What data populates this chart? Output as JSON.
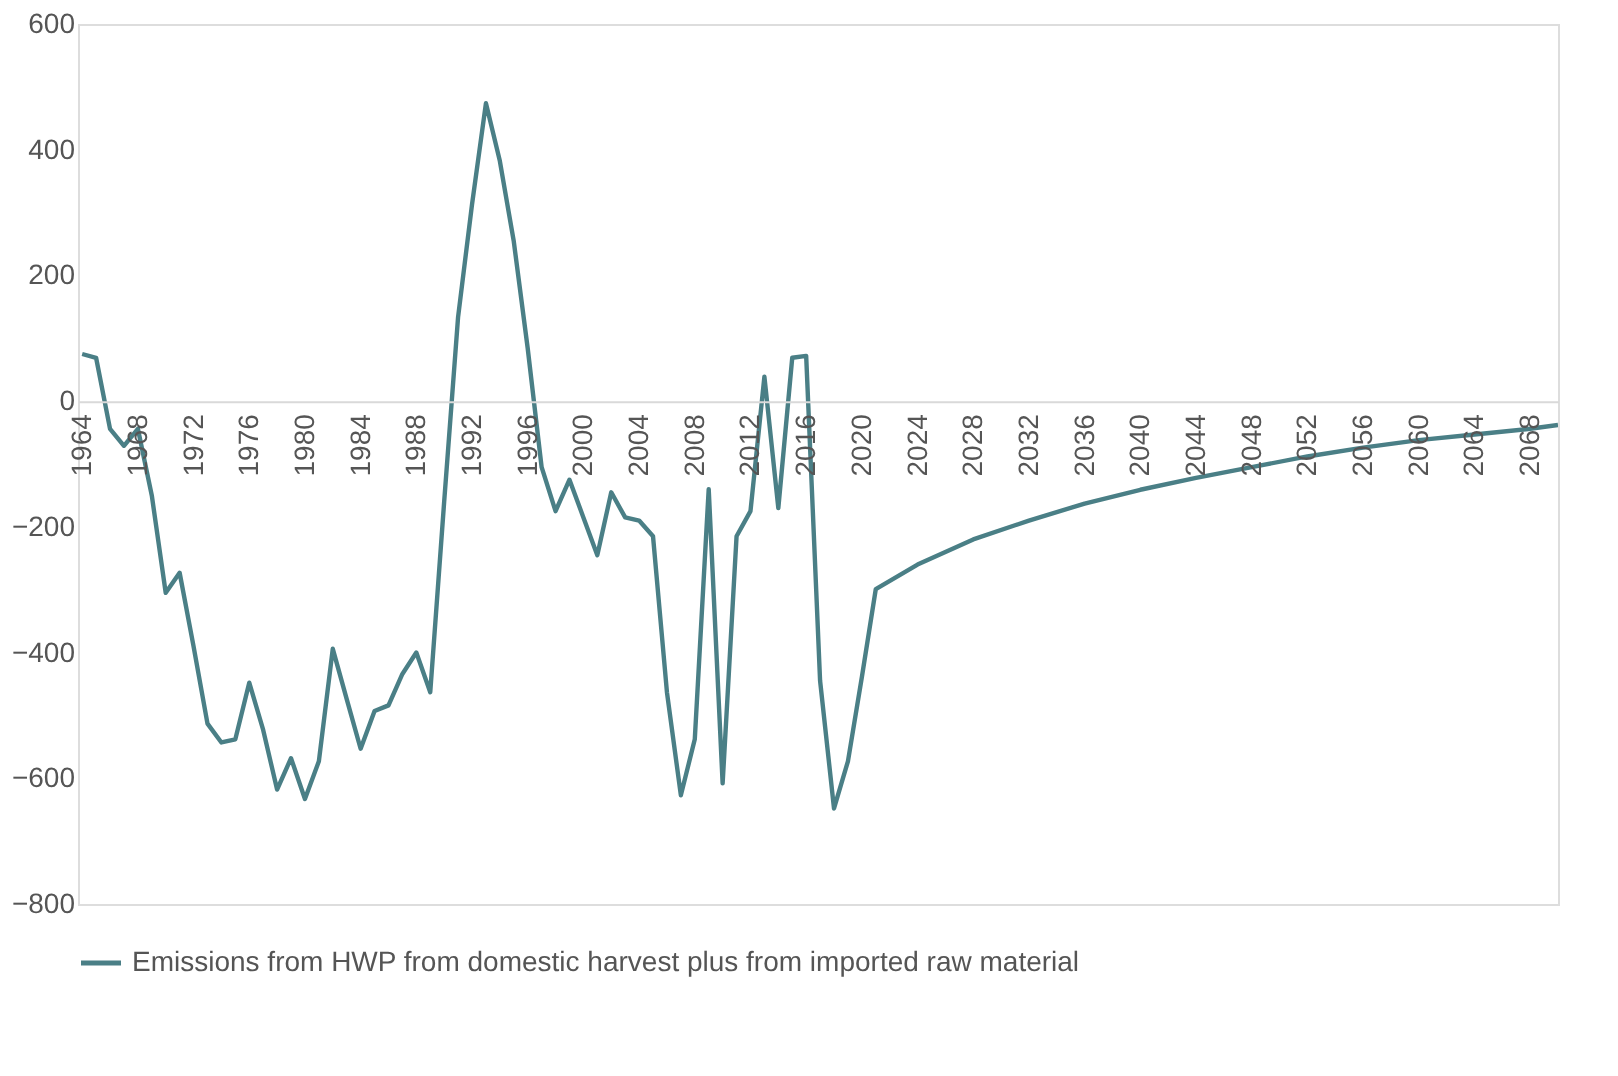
{
  "chart_data": {
    "type": "line",
    "x": [
      1964,
      1965,
      1966,
      1967,
      1968,
      1969,
      1970,
      1971,
      1972,
      1973,
      1974,
      1975,
      1976,
      1977,
      1978,
      1979,
      1980,
      1981,
      1982,
      1983,
      1984,
      1985,
      1986,
      1987,
      1988,
      1989,
      1990,
      1991,
      1992,
      1993,
      1994,
      1995,
      1996,
      1997,
      1998,
      1999,
      2000,
      2001,
      2002,
      2003,
      2004,
      2005,
      2006,
      2007,
      2008,
      2009,
      2010,
      2011,
      2012,
      2013,
      2014,
      2015,
      2016,
      2017,
      2018,
      2019,
      2020,
      2021,
      2024,
      2028,
      2032,
      2036,
      2040,
      2044,
      2048,
      2052,
      2056,
      2060,
      2064,
      2068,
      2070
    ],
    "series": [
      {
        "name": "Emissions from HWP from domestic harvest plus from imported raw material",
        "color": "#4a7f86",
        "values": [
          75,
          69,
          -44,
          -71,
          -44,
          -150,
          -305,
          -273,
          -390,
          -513,
          -543,
          -538,
          -448,
          -523,
          -618,
          -568,
          -633,
          -573,
          -394,
          -474,
          -553,
          -493,
          -484,
          -434,
          -400,
          -463,
          -160,
          134,
          313,
          474,
          382,
          254,
          84,
          -105,
          -175,
          -125,
          -185,
          -245,
          -145,
          -185,
          -190,
          -215,
          -463,
          -627,
          -538,
          -140,
          -608,
          -215,
          -175,
          39,
          -170,
          69,
          72,
          -445,
          -648,
          -573,
          -439,
          -299,
          -260,
          -220,
          -190,
          -163,
          -141,
          -122,
          -105,
          -88,
          -74,
          -62,
          -53,
          -44,
          -38
        ]
      }
    ],
    "xlim": [
      1963.7,
      2070
    ],
    "xticks": [
      1964,
      1968,
      1972,
      1976,
      1980,
      1984,
      1988,
      1992,
      1996,
      2000,
      2004,
      2008,
      2012,
      2016,
      2020,
      2024,
      2028,
      2032,
      2036,
      2040,
      2044,
      2048,
      2052,
      2056,
      2060,
      2064,
      2068
    ],
    "ylim": [
      -800,
      600
    ],
    "yticks": [
      -800,
      -600,
      -400,
      -200,
      0,
      200,
      400,
      600
    ],
    "grid": false,
    "legend": "bottom",
    "marker": "none",
    "line_style": "solid"
  }
}
